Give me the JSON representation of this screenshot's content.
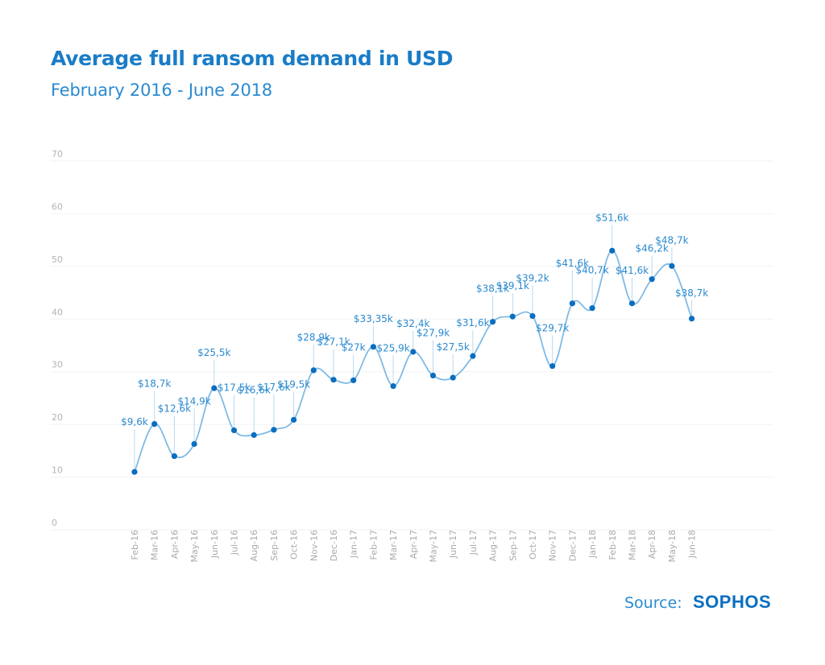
{
  "header": {
    "title": "Average full ransom demand in USD",
    "subtitle": "February 2016 - June 2018"
  },
  "footer": {
    "source_label": "Source:",
    "brand": "SOPHOS"
  },
  "colors": {
    "accent": "#1a7cc7",
    "line": "#7fbbe6",
    "point": "#0a6ec0",
    "label": "#2a8ad0",
    "grid": "#f2f2f2",
    "tick": "#b3b3b3"
  },
  "chart_data": {
    "type": "line",
    "title": "Average full ransom demand in USD",
    "subtitle": "February 2016 - June 2018",
    "xlabel": "",
    "ylabel": "",
    "ylim": [
      0,
      70
    ],
    "yticks": [
      0,
      10,
      20,
      30,
      40,
      50,
      60,
      70
    ],
    "grid": true,
    "legend": "none",
    "categories": [
      "Feb-16",
      "Mar-16",
      "Apr-16",
      "May-16",
      "Jun-16",
      "Jul-16",
      "Aug-16",
      "Sep-16",
      "Oct-16",
      "Nov-16",
      "Dec-16",
      "Jan-17",
      "Feb-17",
      "Mar-17",
      "Apr-17",
      "May-17",
      "Jun-17",
      "Jul-17",
      "Aug-17",
      "Sep-17",
      "Oct-17",
      "Nov-17",
      "Dec-17",
      "Jan-18",
      "Feb-18",
      "Mar-18",
      "Apr-18",
      "May-18",
      "Jun-18"
    ],
    "values": [
      9.6,
      18.7,
      12.6,
      14.9,
      25.5,
      17.5,
      16.6,
      17.6,
      19.5,
      28.9,
      27.1,
      27.0,
      33.35,
      25.9,
      32.4,
      27.9,
      27.5,
      31.6,
      38.1,
      39.1,
      39.2,
      29.7,
      41.6,
      40.7,
      51.6,
      41.6,
      46.2,
      48.7,
      38.7
    ],
    "labels": [
      "$9,6k",
      "$18,7k",
      "$12,6k",
      "$14,9k",
      "$25,5k",
      "$17,5k",
      "$16,6k",
      "$17,6k",
      "$19,5k",
      "$28,9k",
      "$27,1k",
      "$27k",
      "$33,35k",
      "$25,9k",
      "$32,4k",
      "$27,9k",
      "$27,5k",
      "$31,6k",
      "$38,1k",
      "$39,1k",
      "$39,2k",
      "$29,7k",
      "$41,6k",
      "$40,7k",
      "$51,6k",
      "$41,6k",
      "$46,2k",
      "$48,7k",
      "$38,7k"
    ],
    "label_heights": [
      10,
      6,
      9,
      7,
      4,
      7,
      8,
      7,
      4,
      3,
      5,
      3,
      1,
      5,
      1,
      7,
      2,
      3,
      3,
      2,
      5,
      5,
      6,
      5,
      3,
      3,
      2,
      0,
      0
    ]
  }
}
